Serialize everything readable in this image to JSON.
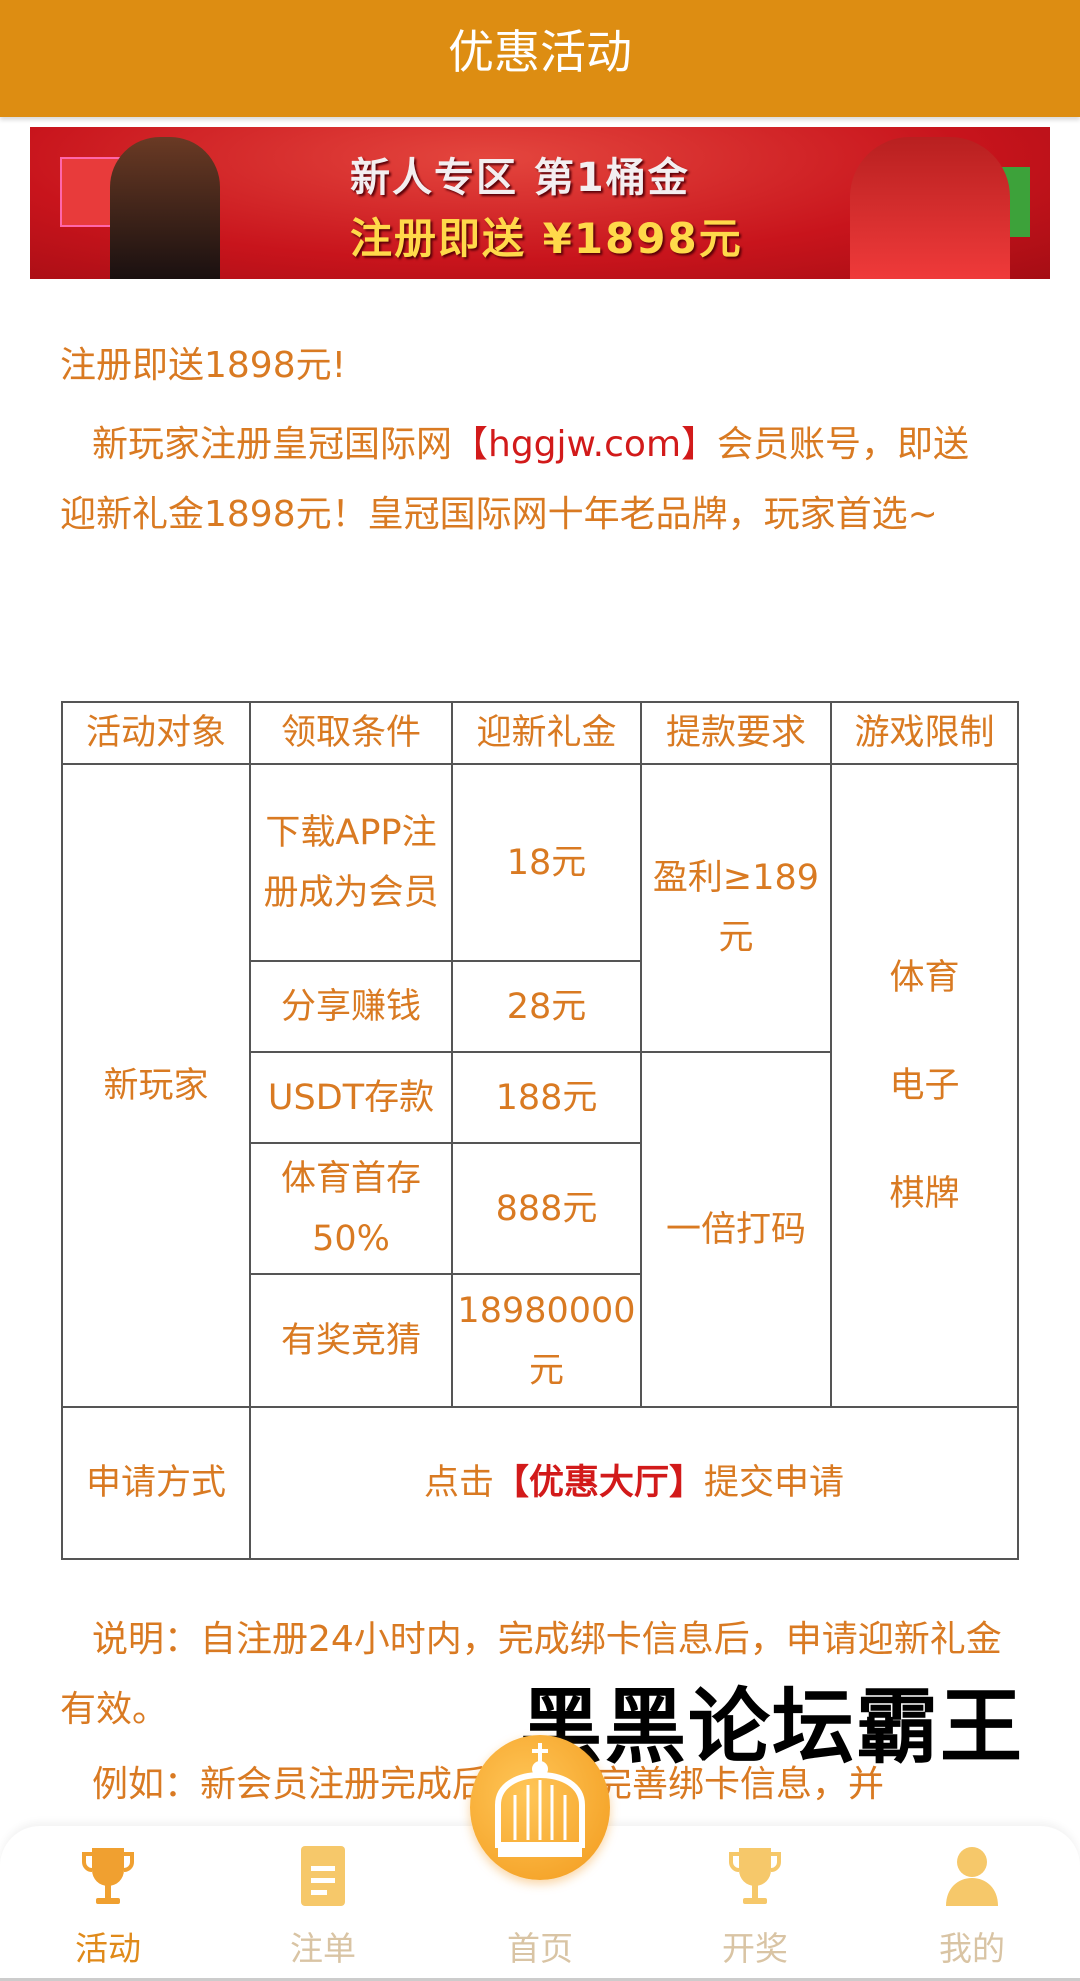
{
  "header": {
    "title": "优惠活动"
  },
  "banner": {
    "line1": "新人专区 第1桶金",
    "line2": "注册即送 ¥1898元"
  },
  "intro": {
    "title": "注册即送1898元!",
    "p_before": "新玩家注册皇冠国际网",
    "p_link": "【hggjw.com】",
    "p_after": "会员账号，即送迎新礼金1898元！皇冠国际网十年老品牌，玩家首选~"
  },
  "table": {
    "headers": [
      "活动对象",
      "领取条件",
      "迎新礼金",
      "提款要求",
      "游戏限制"
    ],
    "target": "新玩家",
    "rows": [
      {
        "condition": "下载APP注册成为会员",
        "bonus": "18元"
      },
      {
        "condition": "分享赚钱",
        "bonus": "28元"
      },
      {
        "condition": "USDT存款",
        "bonus": "188元"
      },
      {
        "condition": "体育首存50%",
        "bonus": "888元"
      },
      {
        "condition": "有奖竞猜",
        "bonus": "18980000元"
      }
    ],
    "withdraw": [
      "盈利≥189元",
      "一倍打码"
    ],
    "games": [
      "体育",
      "电子",
      "棋牌"
    ],
    "apply_label": "申请方式",
    "apply_before": "点击",
    "apply_link": "【优惠大厅】",
    "apply_after": "提交申请"
  },
  "notes": [
    "说明：自注册24小时内，完成绑卡信息后，申请迎新礼金有效。",
    "例如：新会员注册完成后，立即完善绑卡信息，并"
  ],
  "watermark": "黑黑论坛霸王",
  "nav": [
    {
      "label": "活动",
      "icon": "trophy-icon",
      "active": true
    },
    {
      "label": "注单",
      "icon": "ticket-icon"
    },
    {
      "label": "首页",
      "icon": "crown-icon"
    },
    {
      "label": "开奖",
      "icon": "trophy-icon"
    },
    {
      "label": "我的",
      "icon": "user-icon"
    }
  ],
  "colors": {
    "header": "#dd8d12",
    "text": "#d97a22",
    "highlight": "#d21a1a"
  }
}
